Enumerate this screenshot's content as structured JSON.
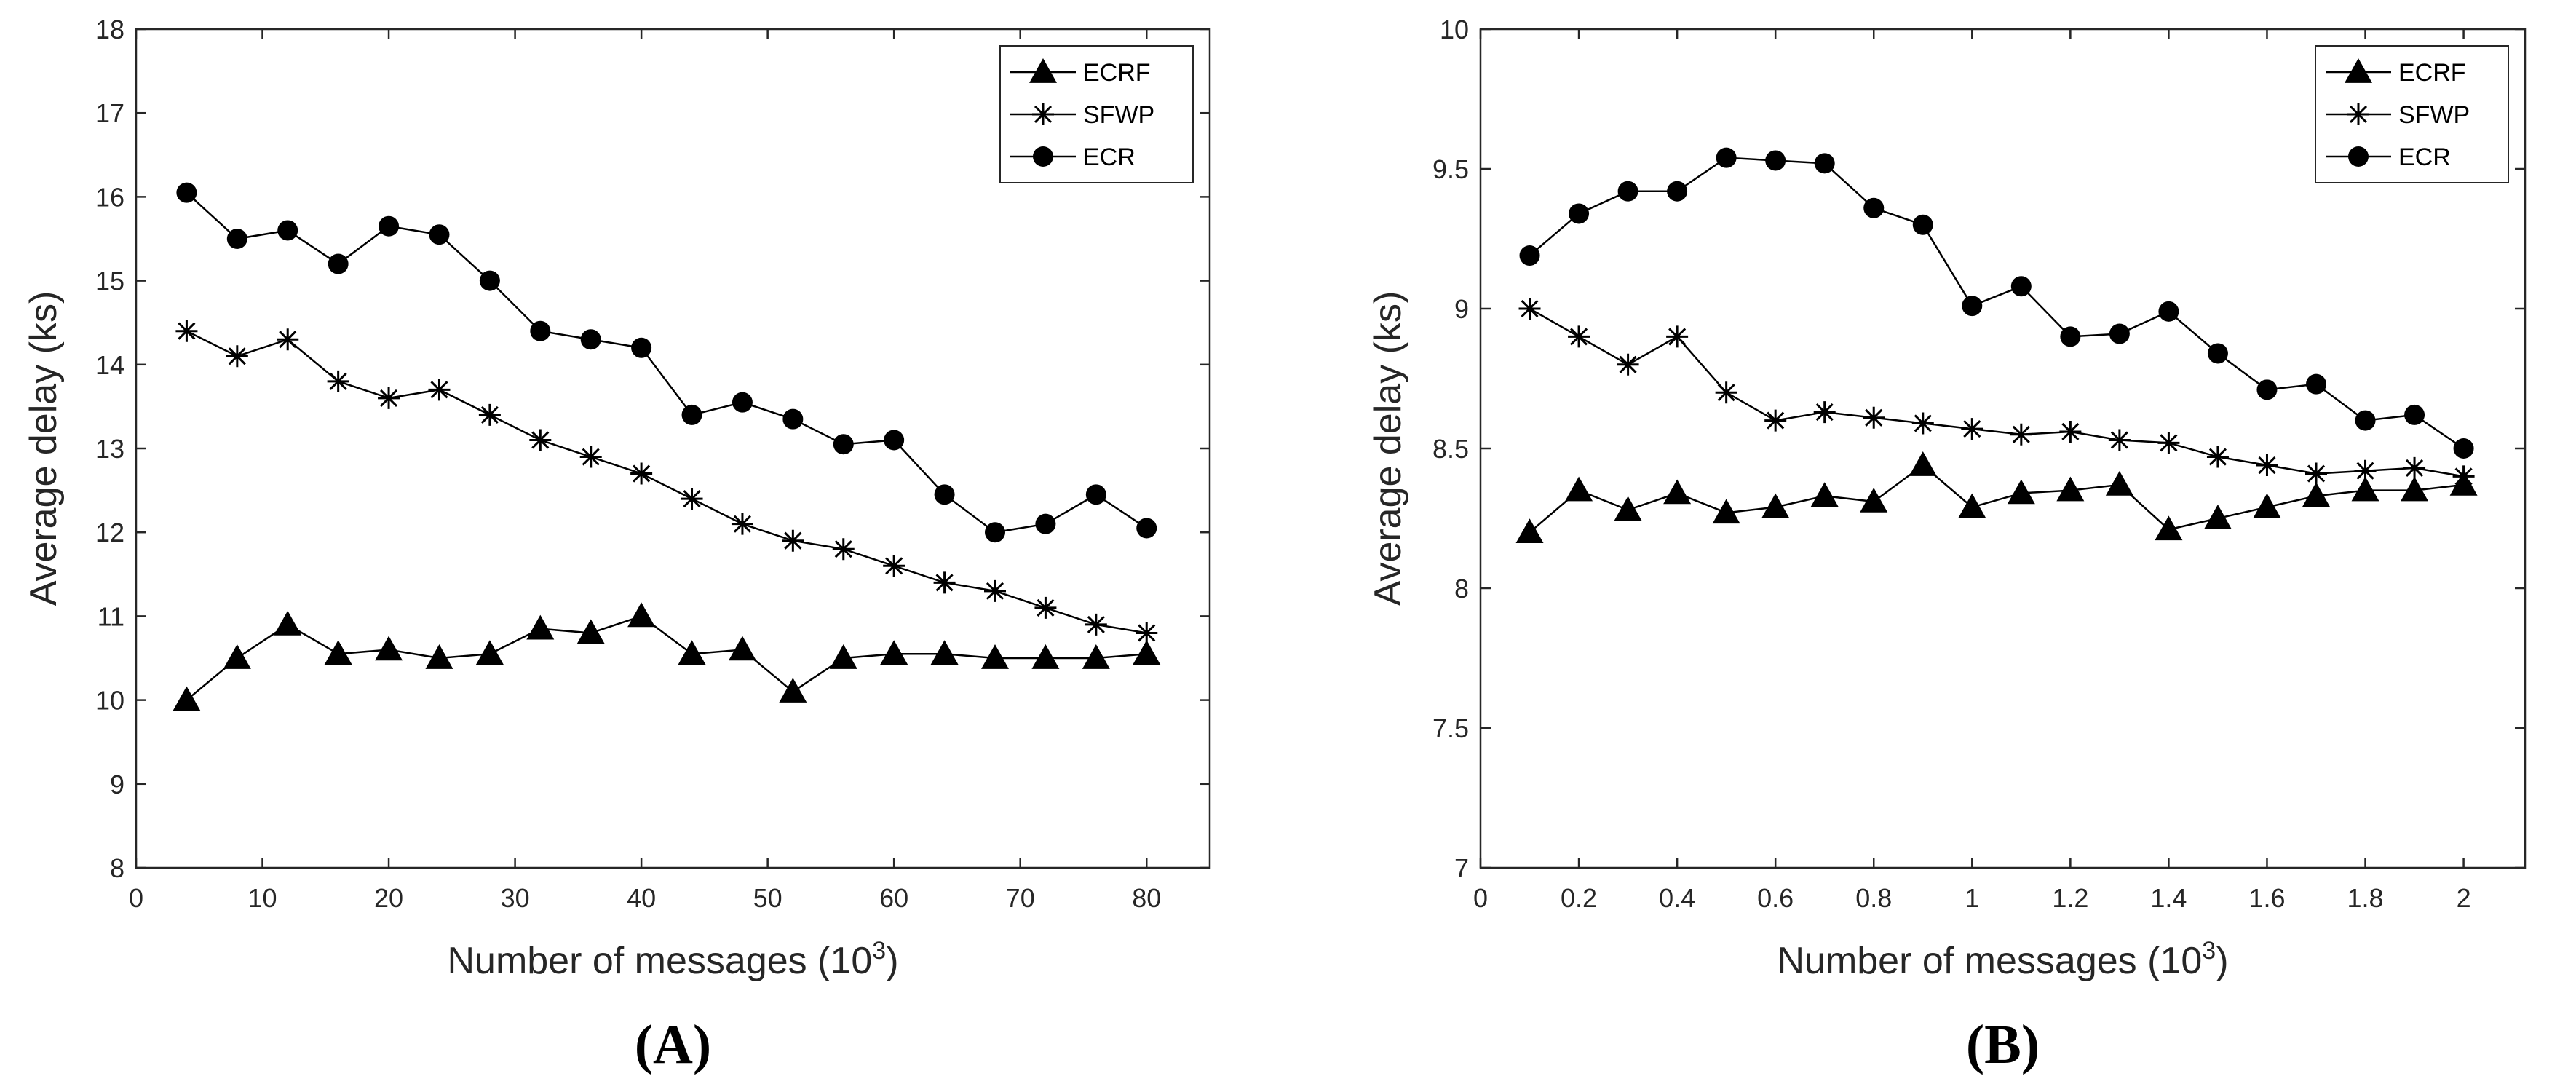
{
  "chart_data": [
    {
      "type": "line",
      "panel_label": "(A)",
      "xlabel": "Number of messages (10",
      "xlabel_sup": "3",
      "xlabel_end": ")",
      "ylabel": "Average delay (ks)",
      "xlim": [
        0,
        85
      ],
      "ylim": [
        8,
        18
      ],
      "xticks": [
        0,
        10,
        20,
        30,
        40,
        50,
        60,
        70,
        80
      ],
      "yticks": [
        8,
        9,
        10,
        11,
        12,
        13,
        14,
        15,
        16,
        17,
        18
      ],
      "legend_position": "top-right",
      "x": [
        4,
        8,
        12,
        16,
        20,
        24,
        28,
        32,
        36,
        40,
        44,
        48,
        52,
        56,
        60,
        64,
        68,
        72,
        76,
        80
      ],
      "series": [
        {
          "name": "ECRF",
          "marker": "triangle",
          "values": [
            10.0,
            10.5,
            10.9,
            10.55,
            10.6,
            10.5,
            10.55,
            10.85,
            10.8,
            11.0,
            10.55,
            10.6,
            10.1,
            10.5,
            10.55,
            10.55,
            10.5,
            10.5,
            10.5,
            10.55
          ]
        },
        {
          "name": "SFWP",
          "marker": "asterisk",
          "values": [
            14.4,
            14.1,
            14.3,
            13.8,
            13.6,
            13.7,
            13.4,
            13.1,
            12.9,
            12.7,
            12.4,
            12.1,
            11.9,
            11.8,
            11.6,
            11.4,
            11.3,
            11.1,
            10.9,
            10.8
          ]
        },
        {
          "name": "ECR",
          "marker": "circle",
          "values": [
            16.05,
            15.5,
            15.6,
            15.2,
            15.65,
            15.55,
            15.0,
            14.4,
            14.3,
            14.2,
            13.4,
            13.55,
            13.35,
            13.05,
            13.1,
            12.45,
            12.0,
            12.1,
            12.45,
            12.05
          ]
        }
      ]
    },
    {
      "type": "line",
      "panel_label": "(B)",
      "xlabel": "Number of messages (10",
      "xlabel_sup": "3",
      "xlabel_end": ")",
      "ylabel": "Average delay (ks)",
      "xlim": [
        0,
        2.125
      ],
      "ylim": [
        7,
        10
      ],
      "xticks": [
        0,
        0.2,
        0.4,
        0.6,
        0.8,
        1,
        1.2,
        1.4,
        1.6,
        1.8,
        2
      ],
      "yticks": [
        7,
        7.5,
        8,
        8.5,
        9,
        9.5,
        10
      ],
      "legend_position": "top-right",
      "x": [
        0.1,
        0.2,
        0.3,
        0.4,
        0.5,
        0.6,
        0.7,
        0.8,
        0.9,
        1.0,
        1.1,
        1.2,
        1.3,
        1.4,
        1.5,
        1.6,
        1.7,
        1.8,
        1.9,
        2.0
      ],
      "series": [
        {
          "name": "ECRF",
          "marker": "triangle",
          "values": [
            8.2,
            8.35,
            8.28,
            8.34,
            8.27,
            8.29,
            8.33,
            8.31,
            8.44,
            8.29,
            8.34,
            8.35,
            8.37,
            8.21,
            8.25,
            8.29,
            8.33,
            8.35,
            8.35,
            8.37
          ]
        },
        {
          "name": "SFWP",
          "marker": "asterisk",
          "values": [
            9.0,
            8.9,
            8.8,
            8.9,
            8.7,
            8.6,
            8.63,
            8.61,
            8.59,
            8.57,
            8.55,
            8.56,
            8.53,
            8.52,
            8.47,
            8.44,
            8.41,
            8.42,
            8.43,
            8.4
          ]
        },
        {
          "name": "ECR",
          "marker": "circle",
          "values": [
            9.19,
            9.34,
            9.42,
            9.42,
            9.54,
            9.53,
            9.52,
            9.36,
            9.3,
            9.01,
            9.08,
            8.9,
            8.91,
            8.99,
            8.84,
            8.71,
            8.73,
            8.6,
            8.62,
            8.5
          ]
        }
      ]
    }
  ]
}
